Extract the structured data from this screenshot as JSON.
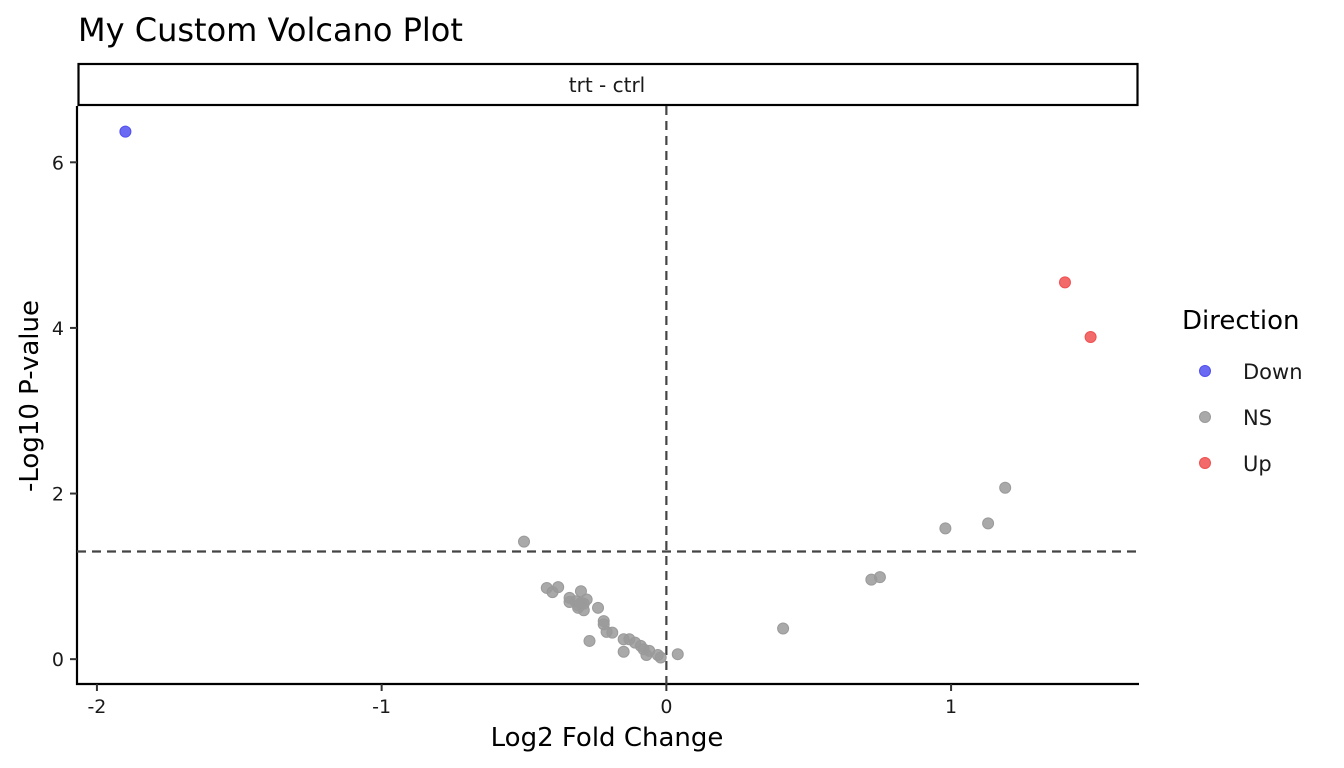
{
  "chart_data": {
    "type": "scatter",
    "title": "My Custom Volcano Plot",
    "facet_label": "trt - ctrl",
    "xlabel": "Log2 Fold Change",
    "ylabel": "-Log10 P-value",
    "xlim": [
      -2.07,
      1.66
    ],
    "ylim": [
      -0.3,
      6.68
    ],
    "x_ticks": [
      -2,
      -1,
      0,
      1
    ],
    "x_tick_labels": [
      "-2",
      "-1",
      "0",
      "1"
    ],
    "y_ticks": [
      0,
      2,
      4,
      6
    ],
    "y_tick_labels": [
      "0",
      "2",
      "4",
      "6"
    ],
    "threshold_lines": {
      "vertical_x": 0,
      "horizontal_y": 1.3
    },
    "legend": {
      "title": "Direction",
      "position": "right",
      "entries": [
        {
          "label": "Down",
          "color": "#5050f0"
        },
        {
          "label": "NS",
          "color": "#9a9a9a"
        },
        {
          "label": "Up",
          "color": "#f05050"
        }
      ]
    },
    "series": [
      {
        "name": "Down",
        "color": "#5050f0",
        "points": [
          [
            -1.9,
            6.37
          ]
        ]
      },
      {
        "name": "NS",
        "color": "#9a9a9a",
        "points": [
          [
            -0.5,
            1.42
          ],
          [
            -0.42,
            0.86
          ],
          [
            -0.4,
            0.81
          ],
          [
            -0.38,
            0.87
          ],
          [
            -0.34,
            0.74
          ],
          [
            -0.34,
            0.69
          ],
          [
            -0.32,
            0.7
          ],
          [
            -0.31,
            0.65
          ],
          [
            -0.31,
            0.62
          ],
          [
            -0.3,
            0.68
          ],
          [
            -0.3,
            0.82
          ],
          [
            -0.29,
            0.59
          ],
          [
            -0.29,
            0.67
          ],
          [
            -0.28,
            0.72
          ],
          [
            -0.27,
            0.22
          ],
          [
            -0.24,
            0.62
          ],
          [
            -0.22,
            0.46
          ],
          [
            -0.22,
            0.42
          ],
          [
            -0.21,
            0.33
          ],
          [
            -0.19,
            0.32
          ],
          [
            -0.15,
            0.24
          ],
          [
            -0.15,
            0.09
          ],
          [
            -0.13,
            0.24
          ],
          [
            -0.11,
            0.2
          ],
          [
            -0.09,
            0.16
          ],
          [
            -0.08,
            0.12
          ],
          [
            -0.07,
            0.05
          ],
          [
            -0.06,
            0.1
          ],
          [
            -0.03,
            0.05
          ],
          [
            -0.02,
            0.02
          ],
          [
            0.04,
            0.06
          ],
          [
            0.41,
            0.37
          ],
          [
            0.72,
            0.96
          ],
          [
            0.75,
            0.99
          ],
          [
            0.98,
            1.58
          ],
          [
            1.13,
            1.64
          ],
          [
            1.19,
            2.07
          ]
        ]
      },
      {
        "name": "Up",
        "color": "#f05050",
        "points": [
          [
            1.4,
            4.55
          ],
          [
            1.49,
            3.89
          ]
        ]
      }
    ]
  }
}
